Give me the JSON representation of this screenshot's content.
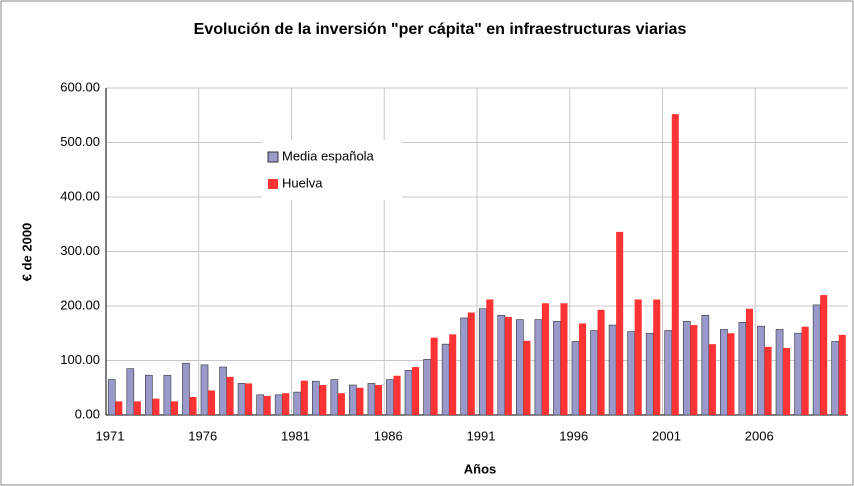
{
  "chart_data": {
    "type": "bar",
    "title": "Evolución de la inversión \"per cápita\" en infraestructuras viarias",
    "x_label": "Años",
    "y_label": "€ de 2000",
    "categories": [
      "1971",
      null,
      null,
      null,
      null,
      "1976",
      null,
      null,
      null,
      null,
      "1981",
      null,
      null,
      null,
      null,
      "1986",
      null,
      null,
      null,
      null,
      "1991",
      null,
      null,
      null,
      null,
      "1996",
      null,
      null,
      null,
      null,
      "2001",
      null,
      null,
      null,
      null,
      "2006",
      null,
      null,
      null,
      null
    ],
    "series": [
      {
        "name": "Media española",
        "color": "#9999cc",
        "values": [
          65,
          85,
          73,
          73,
          95,
          92,
          88,
          58,
          37,
          37,
          42,
          62,
          65,
          55,
          58,
          65,
          82,
          102,
          130,
          178,
          195,
          183,
          175,
          175,
          172,
          135,
          155,
          165,
          153,
          150,
          155,
          172,
          183,
          157,
          170,
          163,
          157,
          150,
          202,
          135
        ]
      },
      {
        "name": "Huelva",
        "color": "#ff3333",
        "values": [
          25,
          25,
          30,
          25,
          33,
          45,
          70,
          58,
          35,
          40,
          63,
          55,
          40,
          50,
          55,
          72,
          88,
          142,
          148,
          188,
          212,
          180,
          136,
          205,
          205,
          168,
          193,
          336,
          212,
          212,
          552,
          165,
          130,
          150,
          195,
          125,
          123,
          162,
          220,
          147
        ]
      }
    ],
    "ylim": [
      0,
      600
    ],
    "yticks": [
      {
        "value": 0,
        "label": "0.00"
      },
      {
        "value": 100,
        "label": "100.00"
      },
      {
        "value": 200,
        "label": "200.00"
      },
      {
        "value": 300,
        "label": "300.00"
      },
      {
        "value": 400,
        "label": "400.00"
      },
      {
        "value": 500,
        "label": "500.00"
      },
      {
        "value": 600,
        "label": "600.00"
      }
    ],
    "grid": true
  }
}
